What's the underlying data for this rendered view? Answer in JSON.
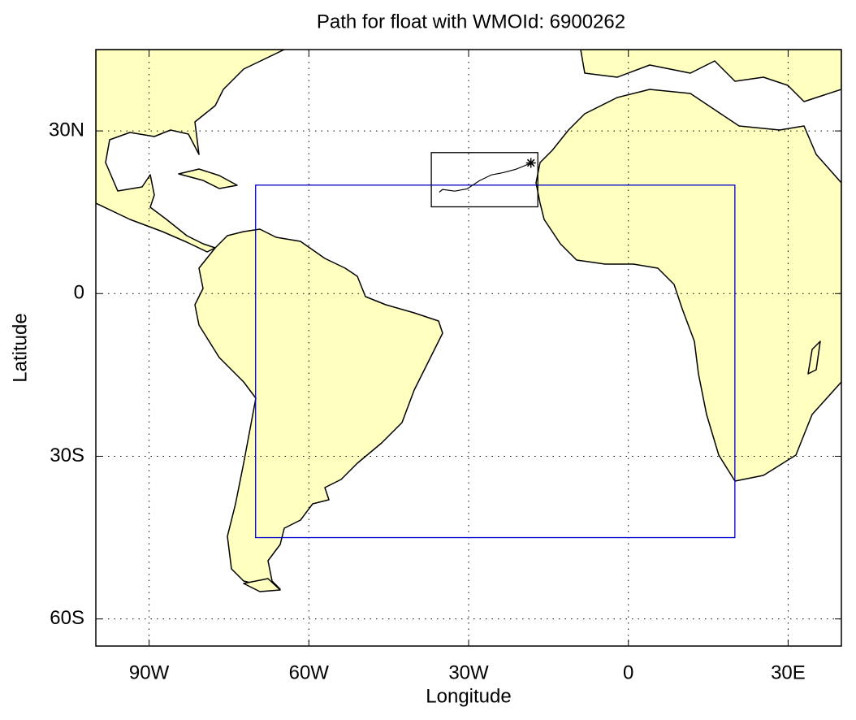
{
  "chart_data": {
    "type": "map",
    "title": "Path for float with WMOId: 6900262",
    "xlabel": "Longitude",
    "ylabel": "Latitude",
    "xlim": [
      -100,
      40
    ],
    "ylim": [
      -65,
      45
    ],
    "xticks": [
      {
        "value": -90,
        "label": "90W"
      },
      {
        "value": -60,
        "label": "60W"
      },
      {
        "value": -30,
        "label": "30W"
      },
      0,
      {
        "value": 30,
        "label": "30E"
      }
    ],
    "yticks": [
      {
        "value": 30,
        "label": "30N"
      },
      0,
      {
        "value": -30,
        "label": "30S"
      },
      {
        "value": -60,
        "label": "60S"
      }
    ],
    "grid": true,
    "boxes": [
      {
        "xlim": [
          -70,
          20
        ],
        "ylim": [
          -45,
          20
        ],
        "color": "#0000cc"
      },
      {
        "xlim": [
          -37,
          -17
        ],
        "ylim": [
          16,
          26
        ],
        "color": "#000000"
      }
    ],
    "series": [
      {
        "color": "#000000",
        "x": [
          -35.5,
          -34.9,
          -32.6,
          -30.3,
          -28.0,
          -25.7,
          -23.5,
          -21.2,
          -19.2,
          -18.3
        ],
        "y": [
          18.7,
          19.2,
          18.9,
          19.3,
          20.8,
          21.9,
          22.3,
          22.9,
          23.7,
          24.1
        ]
      }
    ]
  }
}
